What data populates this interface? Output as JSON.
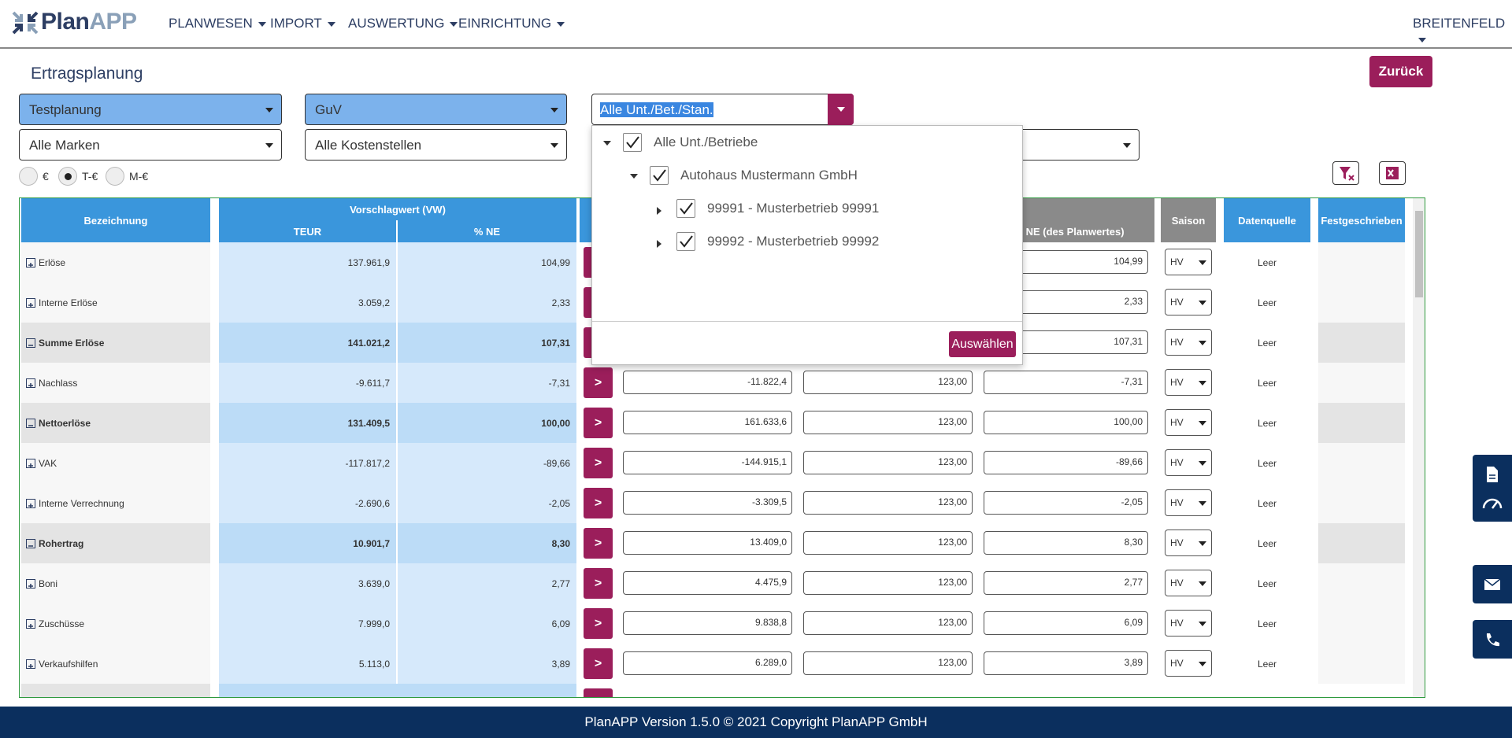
{
  "header": {
    "logo": {
      "part1": "Plan",
      "part2": "APP"
    },
    "nav": [
      "PLANWESEN",
      "IMPORT",
      "AUSWERTUNG",
      "EINRICHTUNG"
    ],
    "user": "BREITENFELD"
  },
  "page": {
    "title": "Ertragsplanung",
    "back_button": "Zurück"
  },
  "filters": {
    "planning": "Testplanung",
    "report": "GuV",
    "units": "Alle Unt./Bet./Stan.",
    "brands": "Alle Marken",
    "cost_centers": "Alle Kostenstellen"
  },
  "currency": {
    "options": [
      "€",
      "T-€",
      "M-€"
    ],
    "selected": 1
  },
  "unit_dropdown": {
    "items": [
      "Alle Unt./Betriebe",
      "Autohaus Mustermann GmbH",
      "99991 - Musterbetrieb 99991",
      "99992 - Musterbetrieb 99992"
    ],
    "button": "Auswählen"
  },
  "table": {
    "columns": {
      "name": "Bezeichnung",
      "proposal": "Vorschlagwert (VW)",
      "proposal_teur": "TEUR",
      "proposal_ne": "% NE",
      "plan_ne": "% NE (des Planwertes)",
      "season": "Saison",
      "source": "Datenquelle",
      "fixed": "Festgeschrieben"
    },
    "action": ">",
    "rows": [
      {
        "name": "Erlöse",
        "total": false,
        "teur": "137.961,9",
        "ne": "104,99",
        "plan_ne": "104,99",
        "season": "HV",
        "source": "Leer"
      },
      {
        "name": "Interne Erlöse",
        "total": false,
        "teur": "3.059,2",
        "ne": "2,33",
        "plan_ne": "2,33",
        "season": "HV",
        "source": "Leer"
      },
      {
        "name": "Summe Erlöse",
        "total": true,
        "teur": "141.021,2",
        "ne": "107,31",
        "plan_ne": "107,31",
        "season": "HV",
        "source": "Leer"
      },
      {
        "name": "Nachlass",
        "total": false,
        "teur": "-9.611,7",
        "ne": "-7,31",
        "plan": "-11.822,4",
        "factor": "123,00",
        "plan_ne": "-7,31",
        "season": "HV",
        "source": "Leer"
      },
      {
        "name": "Nettoerlöse",
        "total": true,
        "teur": "131.409,5",
        "ne": "100,00",
        "plan": "161.633,6",
        "factor": "123,00",
        "plan_ne": "100,00",
        "season": "HV",
        "source": "Leer"
      },
      {
        "name": "VAK",
        "total": false,
        "teur": "-117.817,2",
        "ne": "-89,66",
        "plan": "-144.915,1",
        "factor": "123,00",
        "plan_ne": "-89,66",
        "season": "HV",
        "source": "Leer"
      },
      {
        "name": "Interne Verrechnung",
        "total": false,
        "teur": "-2.690,6",
        "ne": "-2,05",
        "plan": "-3.309,5",
        "factor": "123,00",
        "plan_ne": "-2,05",
        "season": "HV",
        "source": "Leer"
      },
      {
        "name": "Rohertrag",
        "total": true,
        "teur": "10.901,7",
        "ne": "8,30",
        "plan": "13.409,0",
        "factor": "123,00",
        "plan_ne": "8,30",
        "season": "HV",
        "source": "Leer"
      },
      {
        "name": "Boni",
        "total": false,
        "teur": "3.639,0",
        "ne": "2,77",
        "plan": "4.475,9",
        "factor": "123,00",
        "plan_ne": "2,77",
        "season": "HV",
        "source": "Leer"
      },
      {
        "name": "Zuschüsse",
        "total": false,
        "teur": "7.999,0",
        "ne": "6,09",
        "plan": "9.838,8",
        "factor": "123,00",
        "plan_ne": "6,09",
        "season": "HV",
        "source": "Leer"
      },
      {
        "name": "Verkaufshilfen",
        "total": false,
        "teur": "5.113,0",
        "ne": "3,89",
        "plan": "6.289,0",
        "factor": "123,00",
        "plan_ne": "3,89",
        "season": "HV",
        "source": "Leer"
      }
    ]
  },
  "footer": "PlanAPP Version 1.5.0 © 2021 Copyright PlanAPP GmbH"
}
